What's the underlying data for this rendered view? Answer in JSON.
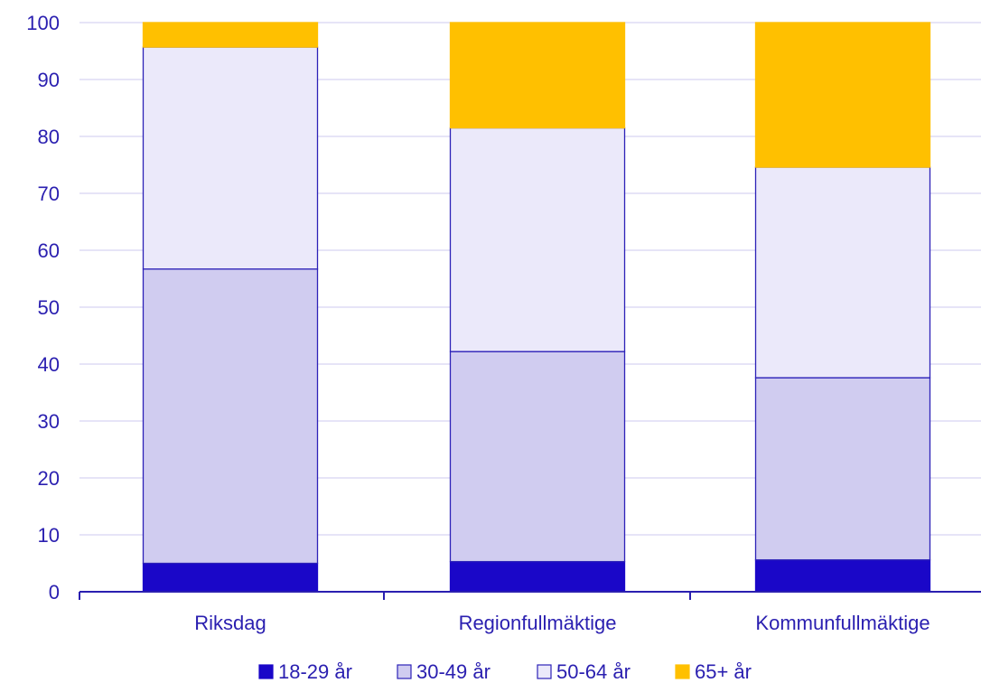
{
  "chart_data": {
    "type": "bar",
    "stacked": true,
    "categories": [
      "Riksdag",
      "Regionfullmäktige",
      "Kommunfullmäktige"
    ],
    "series": [
      {
        "name": "18-29 år",
        "values": [
          5.0,
          5.3,
          5.6
        ],
        "color": "#1a07c8",
        "stroke": "#1a07c8"
      },
      {
        "name": "30-49 år",
        "values": [
          51.7,
          36.9,
          32.0
        ],
        "color": "#d0ccf0",
        "stroke": "#2d22b8"
      },
      {
        "name": "50-64 år",
        "values": [
          39.0,
          39.3,
          37.0
        ],
        "color": "#ebe9fa",
        "stroke": "#2d22b8"
      },
      {
        "name": "65+ år",
        "values": [
          4.3,
          18.5,
          25.4
        ],
        "color": "#ffc000",
        "stroke": "#ffc000"
      }
    ],
    "ylim": [
      0,
      100
    ],
    "yticks": [
      "0",
      "10",
      "20",
      "30",
      "40",
      "50",
      "60",
      "70",
      "80",
      "90",
      "100"
    ],
    "grid": true,
    "legend_position": "bottom",
    "xlabel": "",
    "ylabel": "",
    "title": ""
  },
  "colors": {
    "axis": "#2a1fb0",
    "grid": "#d6d3f2",
    "text": "#2a1fb0"
  }
}
